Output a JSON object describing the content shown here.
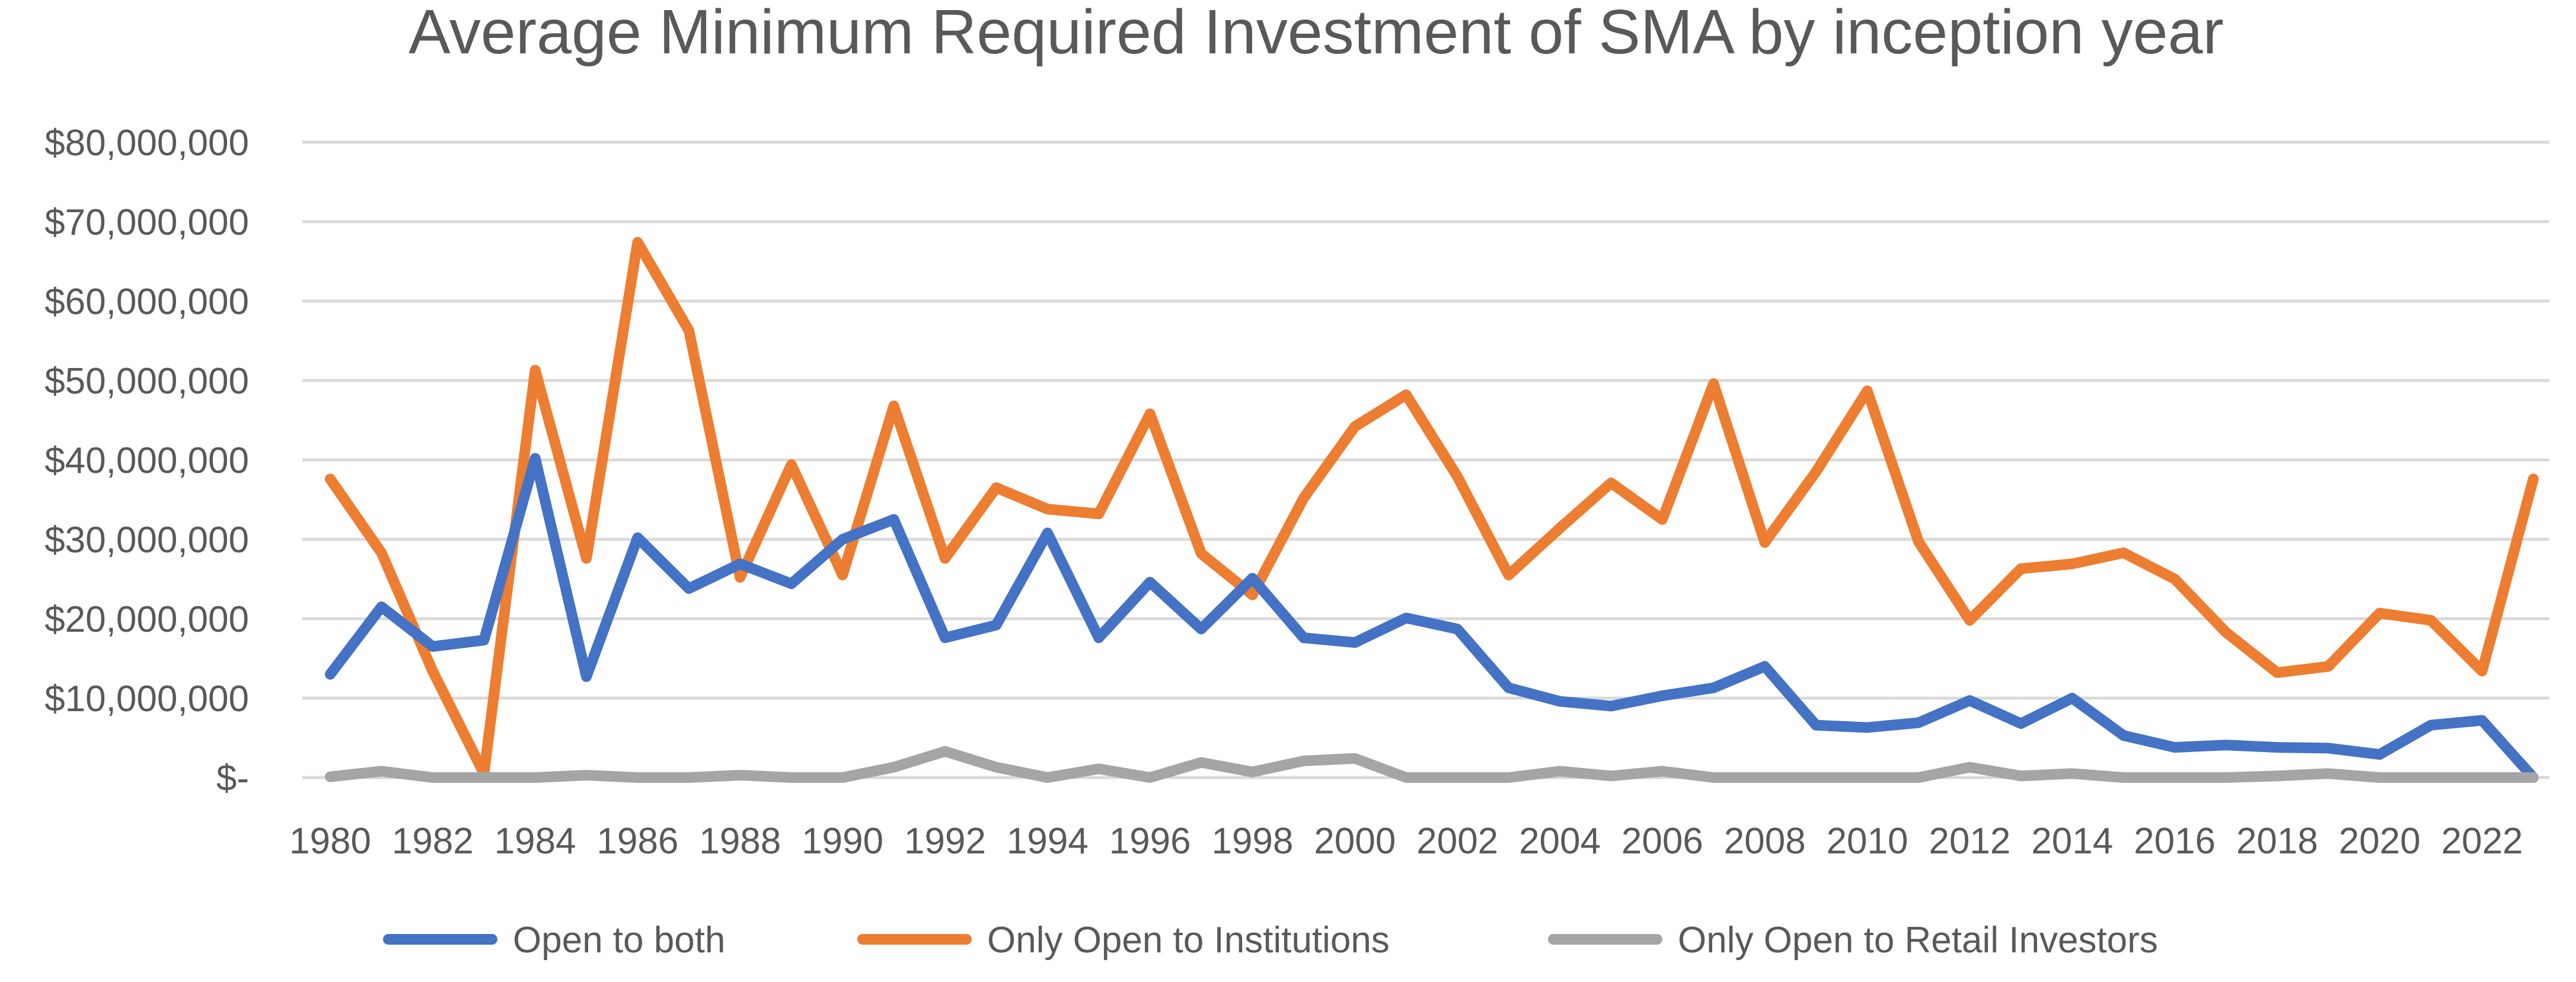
{
  "chart_data": {
    "type": "line",
    "title": "Average Minimum Required Investment of SMA by inception year",
    "xlabel": "",
    "ylabel": "",
    "x": [
      1980,
      1981,
      1982,
      1983,
      1984,
      1985,
      1986,
      1987,
      1988,
      1989,
      1990,
      1991,
      1992,
      1993,
      1994,
      1995,
      1996,
      1997,
      1998,
      1999,
      2000,
      2001,
      2002,
      2003,
      2004,
      2005,
      2006,
      2007,
      2008,
      2009,
      2010,
      2011,
      2012,
      2013,
      2014,
      2015,
      2016,
      2017,
      2018,
      2019,
      2020,
      2021,
      2022,
      2023
    ],
    "x_tick_labels": [
      "1980",
      "1982",
      "1984",
      "1986",
      "1988",
      "1990",
      "1992",
      "1994",
      "1996",
      "1998",
      "2000",
      "2002",
      "2004",
      "2006",
      "2008",
      "2010",
      "2012",
      "2014",
      "2016",
      "2018",
      "2020",
      "2022"
    ],
    "y_tick_labels": [
      "$-",
      "$10,000,000",
      "$20,000,000",
      "$30,000,000",
      "$40,000,000",
      "$50,000,000",
      "$60,000,000",
      "$70,000,000",
      "$80,000,000"
    ],
    "ylim": [
      0,
      80000000
    ],
    "grid": true,
    "legend_position": "bottom",
    "series": [
      {
        "name": "Open to both",
        "color": "#4472C4",
        "values": [
          13000000,
          21500000,
          16500000,
          17300000,
          40200000,
          12700000,
          30200000,
          23800000,
          26900000,
          24400000,
          30000000,
          32500000,
          17600000,
          19200000,
          30800000,
          17600000,
          24600000,
          18700000,
          25100000,
          17600000,
          17000000,
          20100000,
          18700000,
          11300000,
          9600000,
          9000000,
          10300000,
          11300000,
          14000000,
          6600000,
          6300000,
          6900000,
          9700000,
          6800000,
          10000000,
          5300000,
          3800000,
          4100000,
          3800000,
          3700000,
          2900000,
          6600000,
          7200000,
          0
        ]
      },
      {
        "name": "Only Open to Institutions",
        "color": "#ED7D31",
        "values": [
          37600000,
          28300000,
          13400000,
          500000,
          51300000,
          27600000,
          67400000,
          56300000,
          25200000,
          39400000,
          25500000,
          46800000,
          27600000,
          36500000,
          33800000,
          33200000,
          45800000,
          28200000,
          23000000,
          35200000,
          44200000,
          48200000,
          37900000,
          25500000,
          31400000,
          37100000,
          32500000,
          49600000,
          29600000,
          38500000,
          48700000,
          29700000,
          19800000,
          26300000,
          26900000,
          28300000,
          25000000,
          18300000,
          13200000,
          14000000,
          20700000,
          19800000,
          13400000,
          37600000
        ]
      },
      {
        "name": "Only Open to Retail Investors",
        "color": "#A5A5A5",
        "values": [
          100000,
          800000,
          0,
          0,
          0,
          300000,
          0,
          0,
          300000,
          0,
          0,
          1300000,
          3300000,
          1300000,
          0,
          1100000,
          0,
          1900000,
          700000,
          2100000,
          2400000,
          0,
          0,
          0,
          800000,
          200000,
          800000,
          0,
          0,
          0,
          0,
          0,
          1300000,
          200000,
          500000,
          0,
          0,
          0,
          200000,
          500000,
          0,
          0,
          0,
          0
        ]
      }
    ]
  }
}
